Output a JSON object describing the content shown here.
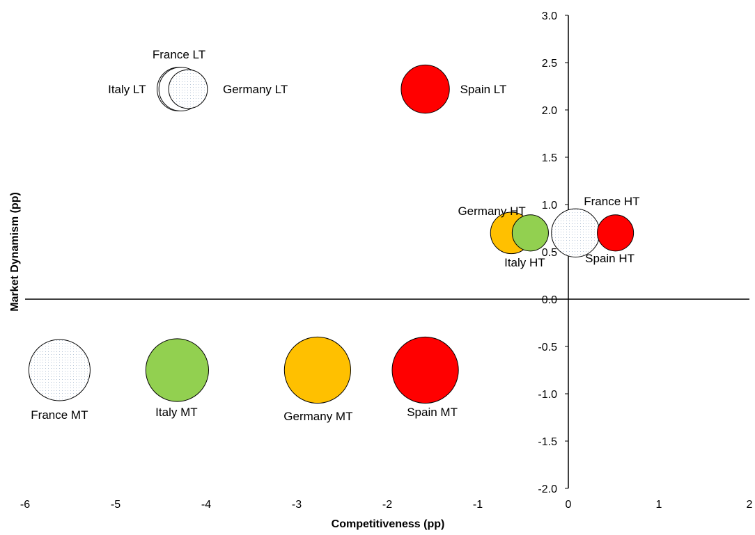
{
  "chart_data": {
    "type": "bubble",
    "xlabel": "Competitiveness (pp)",
    "ylabel": "Market Dynamism (pp)",
    "xlim": [
      -6,
      2
    ],
    "ylim": [
      -2.0,
      3.0
    ],
    "xticks": [
      "-6",
      "-5",
      "-4",
      "-3",
      "-2",
      "-1",
      "0",
      "1",
      "2"
    ],
    "yticks": [
      "-2.0",
      "-1.5",
      "-1.0",
      "-0.5",
      "0.0",
      "0.5",
      "1.0",
      "1.5",
      "2.0",
      "2.5",
      "3.0"
    ],
    "grid": false,
    "series": [
      {
        "label": "France LT",
        "x": -4.3,
        "y": 2.22,
        "size": 0.51,
        "fill": "#ffffff",
        "pattern": "dotted"
      },
      {
        "label": "Italy LT",
        "x": -4.28,
        "y": 2.22,
        "size": 0.51,
        "fill": "#ffffff",
        "pattern": "none"
      },
      {
        "label": "Germany LT",
        "x": -4.2,
        "y": 2.22,
        "size": 0.4,
        "fill": "#ffffff",
        "pattern": "dotted"
      },
      {
        "label": "Spain LT",
        "x": -1.58,
        "y": 2.22,
        "size": 0.62,
        "fill": "#ff0000",
        "pattern": "none"
      },
      {
        "label": "Germany HT",
        "x": -0.63,
        "y": 0.7,
        "size": 0.46,
        "fill": "#ffc000",
        "pattern": "none"
      },
      {
        "label": "Italy HT",
        "x": -0.42,
        "y": 0.7,
        "size": 0.35,
        "fill": "#92d050",
        "pattern": "none"
      },
      {
        "label": "France HT",
        "x": 0.08,
        "y": 0.7,
        "size": 0.62,
        "fill": "#ffffff",
        "pattern": "dotted"
      },
      {
        "label": "Spain HT",
        "x": 0.52,
        "y": 0.7,
        "size": 0.35,
        "fill": "#ff0000",
        "pattern": "none"
      },
      {
        "label": "France MT",
        "x": -5.62,
        "y": -0.75,
        "size": 1.0,
        "fill": "#ffffff",
        "pattern": "dotted"
      },
      {
        "label": "Italy MT",
        "x": -4.32,
        "y": -0.75,
        "size": 1.05,
        "fill": "#92d050",
        "pattern": "none"
      },
      {
        "label": "Germany MT",
        "x": -2.77,
        "y": -0.75,
        "size": 1.17,
        "fill": "#ffc000",
        "pattern": "none"
      },
      {
        "label": "Spain MT",
        "x": -1.58,
        "y": -0.75,
        "size": 1.17,
        "fill": "#ff0000",
        "pattern": "none"
      }
    ]
  }
}
